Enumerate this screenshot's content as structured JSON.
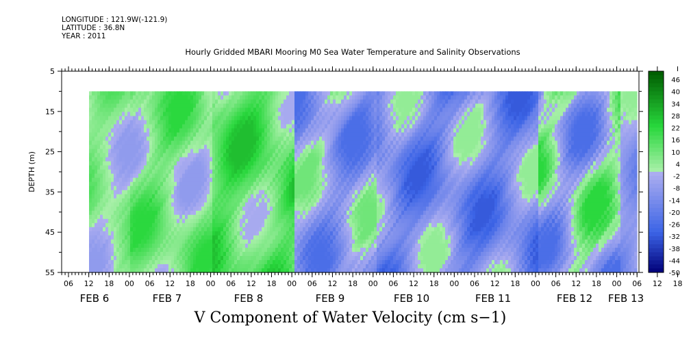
{
  "meta": {
    "longitude": "LONGITUDE : 121.9W(-121.9)",
    "latitude": "LATITUDE : 36.8N",
    "year": "YEAR : 2011"
  },
  "chart_data": {
    "type": "heatmap",
    "title": "Hourly Gridded MBARI Mooring M0 Sea Water Temperature and Salinity Observations",
    "footer": "V Component of Water Velocity (cm s−1)",
    "ylabel": "DEPTH (m)",
    "y_ticks": [
      "5",
      "15",
      "25",
      "35",
      "45",
      "55"
    ],
    "ylim": [
      5,
      55
    ],
    "y_reversed": true,
    "data_depth_range": [
      10,
      55
    ],
    "x_hour_labels": [
      "06",
      "12",
      "18",
      "00",
      "06",
      "12",
      "18",
      "00",
      "06",
      "12",
      "18",
      "00",
      "06",
      "12",
      "18",
      "00",
      "06",
      "12",
      "18",
      "00",
      "06",
      "12",
      "18",
      "00",
      "06",
      "12",
      "18",
      "00",
      "06",
      "12",
      "18",
      "00"
    ],
    "x_day_labels": [
      "FEB  6",
      "FEB  7",
      "FEB  8",
      "FEB  9",
      "FEB 10",
      "FEB 11",
      "FEB 12",
      "FEB 13"
    ],
    "data_time_range": [
      "FEB 6 12:00",
      "FEB 13 ~08:00"
    ],
    "colorbar": {
      "labels": [
        "46",
        "40",
        "34",
        "28",
        "22",
        "16",
        "10",
        "4",
        "-2",
        "-8",
        "-14",
        "-20",
        "-26",
        "-32",
        "-38",
        "-44",
        "-50"
      ],
      "range": [
        -50,
        50
      ],
      "low_color": "#00007a",
      "mid_low_color": "#a6a6f2",
      "mid_high_color": "#a6f2a6",
      "high_color": "#005c00"
    },
    "pattern_description_values": {
      "columns_by_day": [
        {
          "day": "FEB 6 PM",
          "dominant_range": [
            -8,
            16
          ]
        },
        {
          "day": "FEB 7",
          "dominant_range": [
            -8,
            22
          ]
        },
        {
          "day": "FEB 8",
          "dominant_range": [
            -2,
            28
          ]
        },
        {
          "day": "FEB 9",
          "dominant_range": [
            -26,
            10
          ]
        },
        {
          "day": "FEB 10",
          "dominant_range": [
            -32,
            4
          ]
        },
        {
          "day": "FEB 11",
          "dominant_range": [
            -32,
            4
          ]
        },
        {
          "day": "FEB 12",
          "dominant_range": [
            -26,
            22
          ]
        },
        {
          "day": "FEB 13 AM",
          "dominant_range": [
            -20,
            4
          ]
        }
      ]
    }
  }
}
